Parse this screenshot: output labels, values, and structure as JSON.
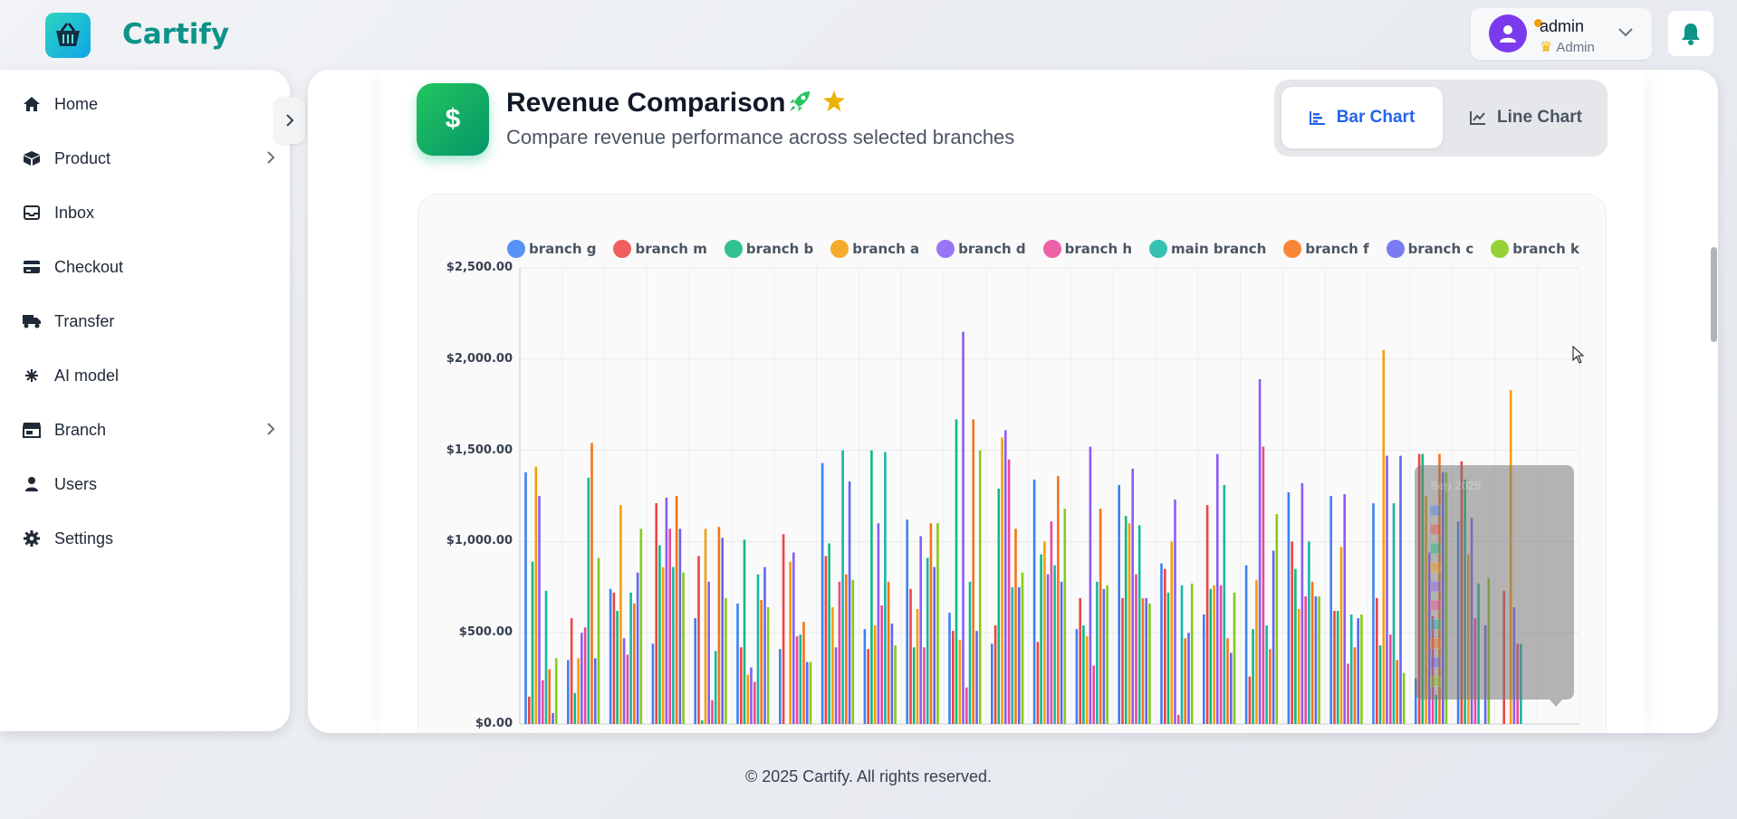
{
  "header": {
    "app_name": "Cartify",
    "logo_icon": "basket-icon",
    "user": {
      "name": "admin",
      "role": "Admin"
    },
    "notifications_icon": "bell-icon"
  },
  "sidebar": {
    "items": [
      {
        "label": "Home",
        "icon": "home-icon",
        "has_submenu": false
      },
      {
        "label": "Product",
        "icon": "box-icon",
        "has_submenu": true
      },
      {
        "label": "Inbox",
        "icon": "inbox-icon",
        "has_submenu": false
      },
      {
        "label": "Checkout",
        "icon": "credit-card-icon",
        "has_submenu": false
      },
      {
        "label": "Transfer",
        "icon": "truck-icon",
        "has_submenu": false
      },
      {
        "label": "AI model",
        "icon": "network-icon",
        "has_submenu": false
      },
      {
        "label": "Branch",
        "icon": "store-icon",
        "has_submenu": true
      },
      {
        "label": "Users",
        "icon": "user-icon",
        "has_submenu": false
      },
      {
        "label": "Settings",
        "icon": "gear-icon",
        "has_submenu": false
      }
    ]
  },
  "page": {
    "title": "Revenue Comparison",
    "subtitle": "Compare revenue performance across selected branches",
    "badge_icon": "dollar-icon",
    "title_icons": [
      "rocket-icon",
      "star-icon"
    ],
    "toggle": {
      "bar_label": "Bar Chart",
      "line_label": "Line Chart",
      "active": "bar"
    }
  },
  "chart_data": {
    "type": "bar",
    "title": "",
    "xlabel": "",
    "ylabel": "",
    "ylim": [
      0,
      2500
    ],
    "y_ticks": [
      "$0.00",
      "$500.00",
      "$1,000.00",
      "$1,500.00",
      "$2,000.00",
      "$2,500.00"
    ],
    "grid": true,
    "legend_position": "top",
    "x_groups": 25,
    "series": [
      {
        "name": "branch g",
        "color": "#3b82f6",
        "values": [
          1380,
          350,
          740,
          440,
          580,
          660,
          410,
          1430,
          520,
          1120,
          610,
          440,
          1340,
          520,
          1310,
          880,
          600,
          870,
          1270,
          1250,
          1210,
          250,
          1110,
          0,
          0
        ]
      },
      {
        "name": "branch m",
        "color": "#ef4444",
        "values": [
          150,
          580,
          720,
          1210,
          920,
          420,
          1040,
          920,
          410,
          740,
          510,
          540,
          450,
          690,
          690,
          850,
          1200,
          260,
          1000,
          620,
          690,
          1480,
          1440,
          730,
          0
        ]
      },
      {
        "name": "branch b",
        "color": "#10b981",
        "values": [
          890,
          170,
          620,
          980,
          20,
          1010,
          0,
          990,
          1500,
          420,
          1670,
          1290,
          930,
          540,
          1140,
          720,
          740,
          520,
          850,
          620,
          430,
          1480,
          1340,
          0,
          0
        ]
      },
      {
        "name": "branch a",
        "color": "#f59e0b",
        "values": [
          1410,
          360,
          1200,
          860,
          1070,
          270,
          890,
          640,
          540,
          630,
          460,
          1570,
          1000,
          480,
          1100,
          1000,
          760,
          790,
          630,
          970,
          2050,
          1250,
          930,
          1830,
          0
        ]
      },
      {
        "name": "branch d",
        "color": "#8b5cf6",
        "values": [
          1250,
          500,
          470,
          1240,
          780,
          310,
          940,
          420,
          1100,
          1030,
          2150,
          1610,
          820,
          1520,
          1400,
          1230,
          1480,
          1890,
          1320,
          1260,
          1470,
          940,
          1130,
          640,
          0
        ]
      },
      {
        "name": "branch h",
        "color": "#ec4899",
        "values": [
          240,
          530,
          380,
          1070,
          130,
          230,
          480,
          780,
          650,
          420,
          200,
          1450,
          1110,
          320,
          820,
          50,
          760,
          1520,
          700,
          330,
          490,
          590,
          580,
          440,
          0
        ]
      },
      {
        "name": "main branch",
        "color": "#14b8a6",
        "values": [
          730,
          1350,
          720,
          860,
          400,
          820,
          490,
          1500,
          1490,
          910,
          780,
          750,
          870,
          780,
          1090,
          760,
          1310,
          540,
          1000,
          600,
          1210,
          160,
          770,
          440,
          0
        ]
      },
      {
        "name": "branch f",
        "color": "#f97316",
        "values": [
          300,
          1540,
          660,
          1250,
          1080,
          680,
          560,
          820,
          780,
          1100,
          1670,
          1070,
          1360,
          1180,
          690,
          470,
          470,
          410,
          780,
          420,
          350,
          1480,
          0,
          0,
          0
        ]
      },
      {
        "name": "branch c",
        "color": "#6366f1",
        "values": [
          60,
          360,
          830,
          1070,
          1020,
          860,
          340,
          1330,
          550,
          860,
          510,
          750,
          780,
          740,
          690,
          500,
          390,
          950,
          700,
          580,
          1470,
          1380,
          540,
          0,
          0
        ]
      },
      {
        "name": "branch k",
        "color": "#84cc16",
        "values": [
          360,
          910,
          1070,
          830,
          690,
          640,
          340,
          790,
          430,
          1100,
          1500,
          830,
          1180,
          760,
          660,
          770,
          720,
          1150,
          700,
          600,
          280,
          1380,
          800,
          0,
          0
        ]
      }
    ]
  },
  "tooltip": {
    "title": "Sep 2025"
  },
  "footer": {
    "text": "© 2025 Cartify. All rights reserved."
  }
}
